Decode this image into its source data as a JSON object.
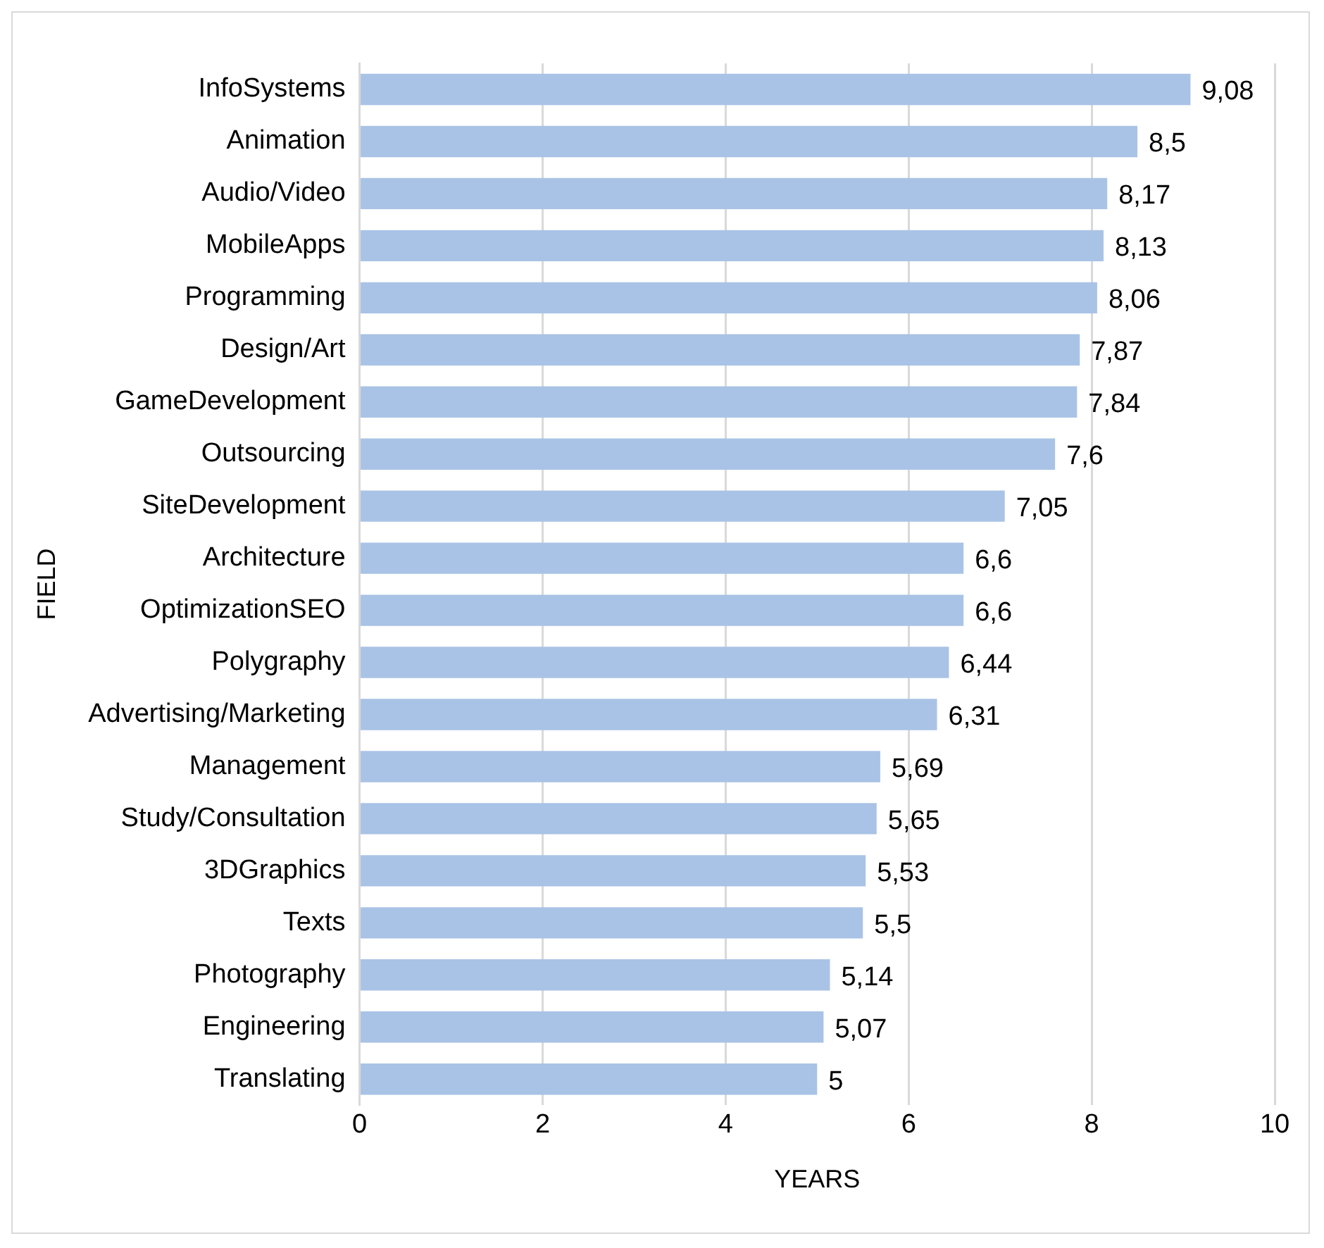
{
  "chart_data": {
    "type": "bar",
    "orientation": "horizontal",
    "xlabel": "YEARS",
    "ylabel": "FIELD",
    "categories": [
      "InfoSystems",
      "Animation",
      "Audio/Video",
      "MobileApps",
      "Programming",
      "Design/Art",
      "GameDevelopment",
      "Outsourcing",
      "SiteDevelopment",
      "Architecture",
      "OptimizationSEO",
      "Polygraphy",
      "Advertising/Marketing",
      "Management",
      "Study/Consultation",
      "3DGraphics",
      "Texts",
      "Photography",
      "Engineering",
      "Translating"
    ],
    "values": [
      9.08,
      8.5,
      8.17,
      8.13,
      8.06,
      7.87,
      7.84,
      7.6,
      7.05,
      6.6,
      6.6,
      6.44,
      6.31,
      5.69,
      5.65,
      5.53,
      5.5,
      5.14,
      5.07,
      5
    ],
    "value_labels": [
      "9,08",
      "8,5",
      "8,17",
      "8,13",
      "8,06",
      "7,87",
      "7,84",
      "7,6",
      "7,05",
      "6,6",
      "6,6",
      "6,44",
      "6,31",
      "5,69",
      "5,65",
      "5,53",
      "5,5",
      "5,14",
      "5,07",
      "5"
    ],
    "color": "#a9c3e6",
    "xlim": [
      0,
      10
    ],
    "xticks": [
      0,
      2,
      4,
      6,
      8,
      10
    ],
    "grid": "x"
  }
}
